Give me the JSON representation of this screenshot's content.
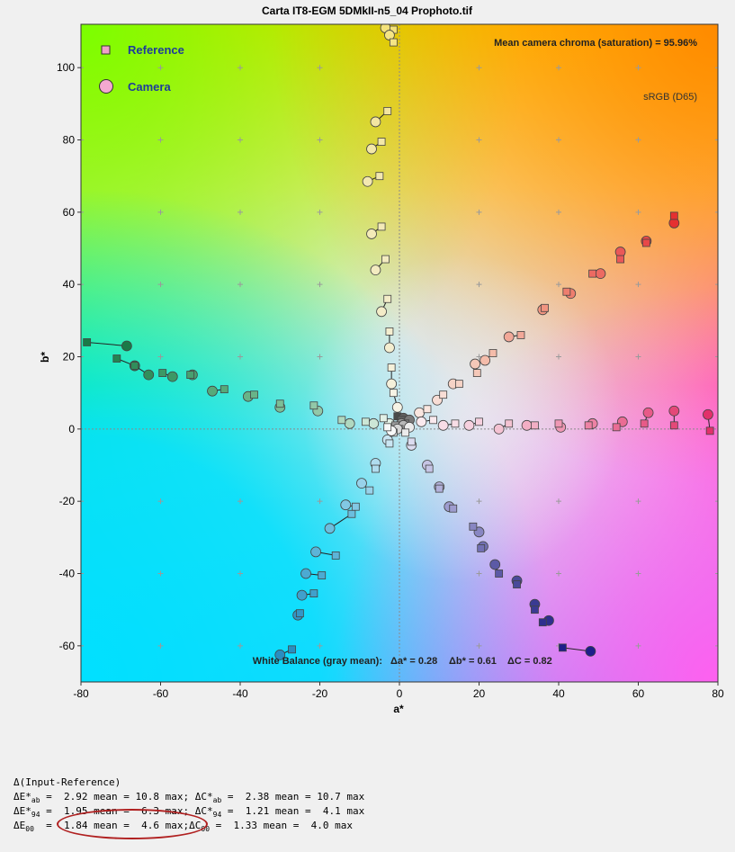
{
  "title": "Carta IT8-EGM 5DMkII-n5_04 Prophoto.tif",
  "legend": {
    "reference": "Reference",
    "camera": "Camera"
  },
  "chroma_note": "Mean camera chroma (saturation) = 95.96%",
  "gamut_note": "sRGB (D65)",
  "wb": {
    "prefix": "White Balance (gray mean):",
    "da": "Δa* = 0.28",
    "db": "Δb* = 0.61",
    "dc": "ΔC = 0.82"
  },
  "stats": {
    "header": "Δ(Input-Reference)",
    "rows": [
      {
        "sym": "ΔE*",
        "sub": "ab",
        "eq": " =  ",
        "mean": "2.92",
        "max": "10.8",
        "csym": "ΔC*",
        "csub": "ab",
        "cmean": "2.38",
        "cmax": "10.7"
      },
      {
        "sym": "ΔE*",
        "sub": "94",
        "eq": " =  ",
        "mean": "1.95",
        "max": " 6.3",
        "csym": "ΔC*",
        "csub": "94",
        "cmean": "1.21",
        "cmax": " 4.1"
      },
      {
        "sym": "ΔE",
        "sub": "00",
        "eq": "  =  ",
        "mean": "1.84",
        "max": " 4.6",
        "csym": "ΔC",
        "csub": "00",
        "cmean": "1.33",
        "cmax": " 4.0"
      }
    ]
  },
  "chart_data": {
    "type": "scatter",
    "title": "Carta IT8-EGM 5DMkII-n5_04 Prophoto.tif",
    "xlabel": "a*",
    "ylabel": "b*",
    "xlim": [
      -80,
      80
    ],
    "ylim": [
      -70,
      112
    ],
    "xticks": [
      -80,
      -60,
      -40,
      -20,
      0,
      20,
      40,
      60,
      80
    ],
    "yticks": [
      -60,
      -40,
      -20,
      0,
      20,
      40,
      60,
      80,
      100
    ],
    "grid": true,
    "legend_position": "top-left",
    "series": [
      {
        "name": "Reference",
        "marker": "square"
      },
      {
        "name": "Camera",
        "marker": "circle"
      }
    ],
    "pairs": [
      {
        "ref": [
          -1.5,
          110.5
        ],
        "cam": [
          -3.5,
          111
        ],
        "color": "#f4e27a"
      },
      {
        "ref": [
          -1.5,
          107
        ],
        "cam": [
          -2.5,
          109
        ],
        "color": "#f5e585"
      },
      {
        "ref": [
          -3,
          88
        ],
        "cam": [
          -6,
          85
        ],
        "color": "#f3e5a0"
      },
      {
        "ref": [
          -4.5,
          79.5
        ],
        "cam": [
          -7,
          77.5
        ],
        "color": "#f3e8a8"
      },
      {
        "ref": [
          -5,
          70
        ],
        "cam": [
          -8,
          68.5
        ],
        "color": "#f3e8b0"
      },
      {
        "ref": [
          -4.5,
          56
        ],
        "cam": [
          -7,
          54
        ],
        "color": "#f3eab8"
      },
      {
        "ref": [
          -3.5,
          47
        ],
        "cam": [
          -6,
          44
        ],
        "color": "#f3ebc0"
      },
      {
        "ref": [
          -3,
          36
        ],
        "cam": [
          -4.5,
          32.5
        ],
        "color": "#f3ecc8"
      },
      {
        "ref": [
          -2.5,
          27
        ],
        "cam": [
          -2.5,
          22.5
        ],
        "color": "#f4eed0"
      },
      {
        "ref": [
          -2,
          17
        ],
        "cam": [
          -2,
          12.5
        ],
        "color": "#f5f0da"
      },
      {
        "ref": [
          -1.5,
          10
        ],
        "cam": [
          -0.5,
          6
        ],
        "color": "#f6f3e5"
      },
      {
        "ref": [
          69,
          59
        ],
        "cam": [
          69,
          57
        ],
        "color": "#e53030"
      },
      {
        "ref": [
          62,
          51.5
        ],
        "cam": [
          62,
          52
        ],
        "color": "#e84848"
      },
      {
        "ref": [
          55.5,
          47
        ],
        "cam": [
          55.5,
          49
        ],
        "color": "#ea5858"
      },
      {
        "ref": [
          48.5,
          43
        ],
        "cam": [
          50.5,
          43
        ],
        "color": "#ec6a62"
      },
      {
        "ref": [
          42,
          38
        ],
        "cam": [
          43,
          37.5
        ],
        "color": "#ee7e6e"
      },
      {
        "ref": [
          36.5,
          33.5
        ],
        "cam": [
          36,
          33
        ],
        "color": "#f09480"
      },
      {
        "ref": [
          30.5,
          26
        ],
        "cam": [
          27.5,
          25.5
        ],
        "color": "#f2a898"
      },
      {
        "ref": [
          23.5,
          21
        ],
        "cam": [
          21.5,
          19
        ],
        "color": "#f4bcaa"
      },
      {
        "ref": [
          19.5,
          15.5
        ],
        "cam": [
          19,
          18
        ],
        "color": "#f5c8b8"
      },
      {
        "ref": [
          15,
          12.5
        ],
        "cam": [
          13.5,
          12.5
        ],
        "color": "#f6d3c6"
      },
      {
        "ref": [
          11,
          9.5
        ],
        "cam": [
          9.5,
          8
        ],
        "color": "#f8ddd5"
      },
      {
        "ref": [
          7,
          5.5
        ],
        "cam": [
          5,
          4.5
        ],
        "color": "#f9e6df"
      },
      {
        "ref": [
          78,
          -0.5
        ],
        "cam": [
          77.5,
          4
        ],
        "color": "#e2306a"
      },
      {
        "ref": [
          69,
          1
        ],
        "cam": [
          69,
          5
        ],
        "color": "#e44878"
      },
      {
        "ref": [
          61.5,
          1.5
        ],
        "cam": [
          62.5,
          4.5
        ],
        "color": "#e85a88"
      },
      {
        "ref": [
          54.5,
          0.5
        ],
        "cam": [
          56,
          2
        ],
        "color": "#ea6c94"
      },
      {
        "ref": [
          47.5,
          1
        ],
        "cam": [
          48.5,
          1.5
        ],
        "color": "#ee82a4"
      },
      {
        "ref": [
          40,
          1.5
        ],
        "cam": [
          40.5,
          0.5
        ],
        "color": "#f098b4"
      },
      {
        "ref": [
          34,
          1
        ],
        "cam": [
          32,
          1
        ],
        "color": "#f2aec4"
      },
      {
        "ref": [
          27.5,
          1.5
        ],
        "cam": [
          25,
          0
        ],
        "color": "#f4c2d2"
      },
      {
        "ref": [
          20,
          2
        ],
        "cam": [
          17.5,
          1
        ],
        "color": "#f6d0de"
      },
      {
        "ref": [
          14,
          1.5
        ],
        "cam": [
          11,
          1
        ],
        "color": "#f8dde6"
      },
      {
        "ref": [
          8.5,
          2.5
        ],
        "cam": [
          5.5,
          2
        ],
        "color": "#faeaee"
      },
      {
        "ref": [
          41,
          -60.5
        ],
        "cam": [
          48,
          -61.5
        ],
        "color": "#1e1e8a"
      },
      {
        "ref": [
          36,
          -53.5
        ],
        "cam": [
          37.5,
          -53
        ],
        "color": "#2e2e8e"
      },
      {
        "ref": [
          34,
          -50
        ],
        "cam": [
          34,
          -48.5
        ],
        "color": "#3a3a92"
      },
      {
        "ref": [
          29.5,
          -43
        ],
        "cam": [
          29.5,
          -42
        ],
        "color": "#4a4a9a"
      },
      {
        "ref": [
          25,
          -40
        ],
        "cam": [
          24,
          -37.5
        ],
        "color": "#5c5aa6"
      },
      {
        "ref": [
          20.5,
          -33
        ],
        "cam": [
          21,
          -32.5
        ],
        "color": "#7270b4"
      },
      {
        "ref": [
          18.5,
          -27
        ],
        "cam": [
          20,
          -28.5
        ],
        "color": "#8886c2"
      },
      {
        "ref": [
          13.5,
          -22
        ],
        "cam": [
          12.5,
          -21.5
        ],
        "color": "#9e9ccf"
      },
      {
        "ref": [
          10,
          -16.5
        ],
        "cam": [
          10,
          -16
        ],
        "color": "#b2b0da"
      },
      {
        "ref": [
          7.5,
          -11
        ],
        "cam": [
          7,
          -10
        ],
        "color": "#c6c4e5"
      },
      {
        "ref": [
          3,
          -3.5
        ],
        "cam": [
          3,
          -4.5
        ],
        "color": "#dcdcf0"
      },
      {
        "ref": [
          -27,
          -61
        ],
        "cam": [
          -30,
          -62.5
        ],
        "color": "#2a8ec0"
      },
      {
        "ref": [
          -25,
          -51
        ],
        "cam": [
          -25.5,
          -51.5
        ],
        "color": "#3496c6"
      },
      {
        "ref": [
          -21.5,
          -45.5
        ],
        "cam": [
          -24.5,
          -46
        ],
        "color": "#40a0cc"
      },
      {
        "ref": [
          -19.5,
          -40.5
        ],
        "cam": [
          -23.5,
          -40
        ],
        "color": "#4caad2"
      },
      {
        "ref": [
          -16,
          -35
        ],
        "cam": [
          -21,
          -34
        ],
        "color": "#5cb4d8"
      },
      {
        "ref": [
          -12,
          -23.5
        ],
        "cam": [
          -17.5,
          -27.5
        ],
        "color": "#6cbede"
      },
      {
        "ref": [
          -11,
          -21.5
        ],
        "cam": [
          -13.5,
          -21
        ],
        "color": "#82c8e4"
      },
      {
        "ref": [
          -7.5,
          -17
        ],
        "cam": [
          -9.5,
          -15
        ],
        "color": "#98d2ea"
      },
      {
        "ref": [
          -6,
          -11
        ],
        "cam": [
          -6,
          -9.5
        ],
        "color": "#b0dcef"
      },
      {
        "ref": [
          -2.5,
          -4
        ],
        "cam": [
          -3,
          -3
        ],
        "color": "#cae6f3"
      },
      {
        "ref": [
          -78.5,
          24
        ],
        "cam": [
          -68.5,
          23
        ],
        "color": "#1a7a48"
      },
      {
        "ref": [
          -71,
          19.5
        ],
        "cam": [
          -66.5,
          17.5
        ],
        "color": "#248452"
      },
      {
        "ref": [
          -66.5,
          17.5
        ],
        "cam": [
          -63,
          15
        ],
        "color": "#308e5c"
      },
      {
        "ref": [
          -59.5,
          15.5
        ],
        "cam": [
          -57,
          14.5
        ],
        "color": "#3c9866"
      },
      {
        "ref": [
          -52.5,
          15
        ],
        "cam": [
          -52,
          15
        ],
        "color": "#48a070"
      },
      {
        "ref": [
          -44,
          11
        ],
        "cam": [
          -47,
          10.5
        ],
        "color": "#56aa7a"
      },
      {
        "ref": [
          -36.5,
          9.5
        ],
        "cam": [
          -38,
          9
        ],
        "color": "#68b488"
      },
      {
        "ref": [
          -30,
          7
        ],
        "cam": [
          -30,
          6
        ],
        "color": "#7cbe96"
      },
      {
        "ref": [
          -21.5,
          6.5
        ],
        "cam": [
          -20.5,
          5
        ],
        "color": "#92c8a8"
      },
      {
        "ref": [
          -14.5,
          2.5
        ],
        "cam": [
          -12.5,
          1.5
        ],
        "color": "#b0d8c0"
      },
      {
        "ref": [
          -8.5,
          2
        ],
        "cam": [
          -6.5,
          1.5
        ],
        "color": "#cce6d6"
      },
      {
        "ref": [
          -4,
          3
        ],
        "cam": [
          -2.5,
          1.5
        ],
        "color": "#e2f0e6"
      },
      {
        "ref": [
          -0.5,
          3.5
        ],
        "cam": [
          1.5,
          2
        ],
        "color": "#4a4a4a"
      },
      {
        "ref": [
          0.5,
          2.5
        ],
        "cam": [
          1,
          3
        ],
        "color": "#606060"
      },
      {
        "ref": [
          1.5,
          1.5
        ],
        "cam": [
          2.5,
          2.5
        ],
        "color": "#7a7a7a"
      },
      {
        "ref": [
          -1,
          1
        ],
        "cam": [
          0.5,
          1.5
        ],
        "color": "#9a9a9a"
      },
      {
        "ref": [
          0,
          0
        ],
        "cam": [
          1,
          1
        ],
        "color": "#b8b8b8"
      },
      {
        "ref": [
          -1.5,
          -1
        ],
        "cam": [
          -0.5,
          0
        ],
        "color": "#d6d6d6"
      },
      {
        "ref": [
          1.5,
          -1
        ],
        "cam": [
          2.5,
          0.5
        ],
        "color": "#ececec"
      },
      {
        "ref": [
          -3,
          0.5
        ],
        "cam": [
          -2,
          -0.5
        ],
        "color": "#f8f8f8"
      }
    ]
  }
}
